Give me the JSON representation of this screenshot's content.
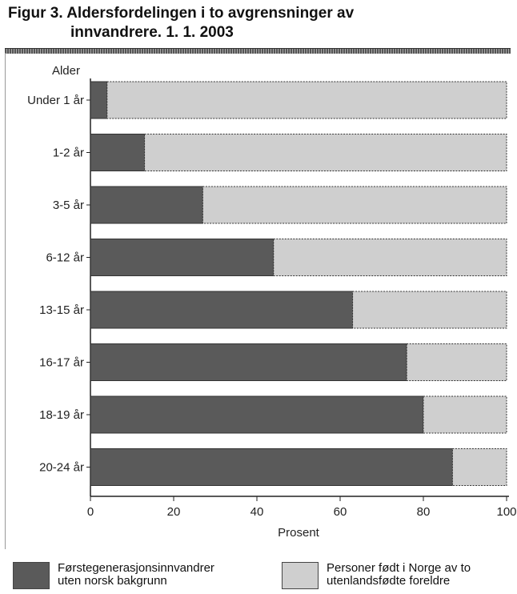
{
  "title": {
    "line1": "Figur 3. Aldersfordelingen i to avgrensninger av",
    "line2": "innvandrere. 1. 1. 2003"
  },
  "chart_data": {
    "type": "bar",
    "orientation": "horizontal",
    "stacked": true,
    "percent": true,
    "categories": [
      "Under 1 år",
      "1-2 år",
      "3-5 år",
      "6-12 år",
      "13-15 år",
      "16-17 år",
      "18-19 år",
      "20-24 år"
    ],
    "series": [
      {
        "name": "Førstegenerasjonsinnvandrer uten norsk bakgrunn",
        "color": "#5a5a5a",
        "values": [
          4,
          13,
          27,
          44,
          63,
          76,
          80,
          87
        ]
      },
      {
        "name": "Personer født i Norge av to utenlandsfødte foreldre",
        "color": "#cfcfcf",
        "values": [
          96,
          87,
          73,
          56,
          37,
          24,
          20,
          13
        ]
      }
    ],
    "xlabel": "Prosent",
    "ylabel": "Alder",
    "xlim": [
      0,
      100
    ],
    "xticks": [
      "0",
      "20",
      "40",
      "60",
      "80",
      "100"
    ],
    "grid": false,
    "legend_position": "bottom"
  },
  "legend": [
    {
      "line1": "Førstegenerasjonsinnvandrer",
      "line2": "uten norsk bakgrunn",
      "color": "#5a5a5a"
    },
    {
      "line1": "Personer født i Norge av to",
      "line2": "utenlandsfødte foreldre",
      "color": "#cfcfcf"
    }
  ]
}
